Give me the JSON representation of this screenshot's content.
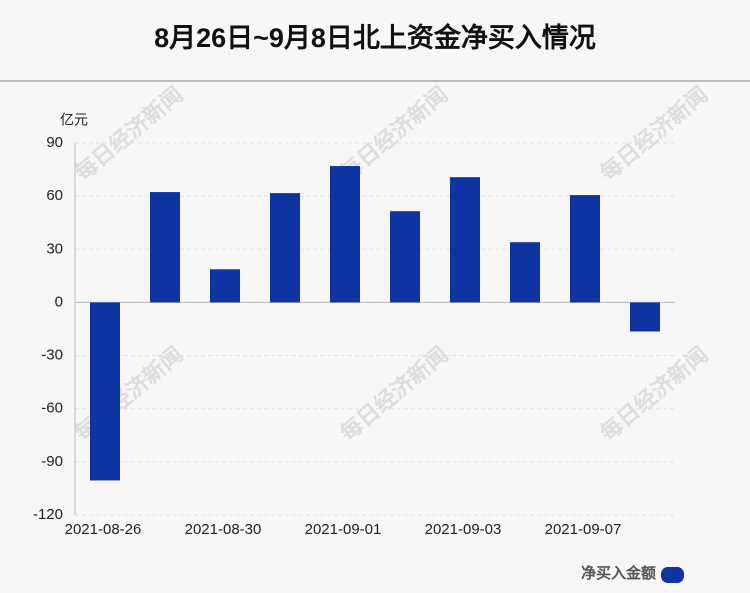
{
  "chart_data": {
    "type": "bar",
    "title": "8月26日~9月8日北上资金净买入情况",
    "y_label": "亿元",
    "watermark": "每日经济新闻",
    "categories": [
      "2021-08-26",
      null,
      "2021-08-30",
      null,
      "2021-09-01",
      null,
      "2021-09-03",
      null,
      "2021-09-07",
      null
    ],
    "series": [
      {
        "name": "净买入金额",
        "color": "#0d34a0",
        "values": [
          -100.5,
          62.3,
          18.7,
          61.7,
          77,
          51.5,
          70.7,
          34,
          60.6,
          -16.4
        ]
      }
    ],
    "ylim": [
      -120,
      90
    ],
    "yticks": [
      -120,
      -90,
      -60,
      -30,
      0,
      30,
      60,
      90
    ],
    "grid": true,
    "legend": "bottom-right"
  }
}
